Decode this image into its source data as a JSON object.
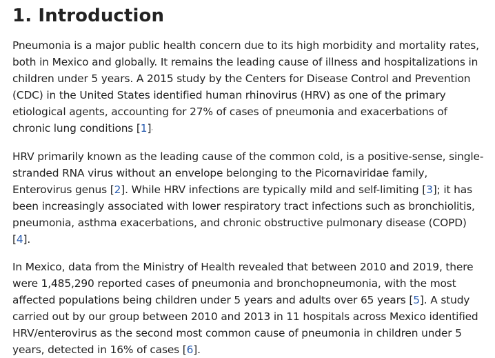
{
  "section": {
    "title": "1. Introduction"
  },
  "paragraphs": [
    {
      "t1": "Pneumonia is a major public health concern due to its high morbidity and mortality rates, both in Mexico and globally. It remains the leading cause of illness and hospitalizations in children under 5 years. A 2015 study by the Centers for Disease Control and Prevention (CDC) in the United States identified human rhinovirus (HRV) as one of the primary etiological agents, accounting for 27% of cases of pneumonia and exacerbations of chronic lung conditions [",
      "r1": "1",
      "t2": "]",
      "t3": "."
    },
    {
      "t1": "HRV primarily known as the leading cause of the common cold, is a positive-sense, single-stranded RNA virus without an envelope belonging to the Picornaviridae family, Enterovirus genus [",
      "r1": "2",
      "t2": "]. While HRV infections are typically mild and self-limiting [",
      "r2": "3",
      "t3": "]; it has been increasingly associated with lower respiratory tract infections such as bronchiolitis, pneumonia, asthma exacerbations, and chronic obstructive pulmonary disease (COPD) [",
      "r3": "4",
      "t4": "]."
    },
    {
      "t1": "In Mexico, data from the Ministry of Health revealed that between 2010 and 2019, there were 1,485,290 reported cases of pneumonia and bronchopneumonia, with the most affected populations being children under 5 years and adults over 65 years [",
      "r1": "5",
      "t2": "]. A study carried out by our group between 2010 and 2013 in 11 hospitals across Mexico identified HRV/enterovirus as the second most common cause of pneumonia in children under 5 years, detected in 16% of cases [",
      "r2": "6",
      "t3": "]."
    }
  ]
}
